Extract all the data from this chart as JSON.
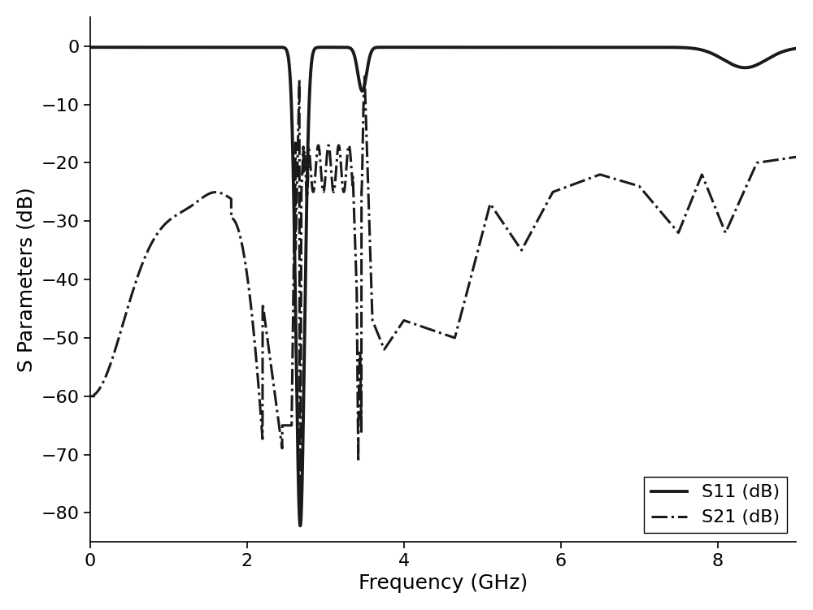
{
  "title": "",
  "xlabel": "Frequency (GHz)",
  "ylabel": "S Parameters (dB)",
  "xlim": [
    0,
    9
  ],
  "ylim": [
    -85,
    5
  ],
  "yticks": [
    0,
    -10,
    -20,
    -30,
    -40,
    -50,
    -60,
    -70,
    -80
  ],
  "xticks": [
    0,
    2,
    4,
    6,
    8
  ],
  "legend_labels": [
    "S11 (dB)",
    "S21 (dB)"
  ],
  "background_color": "#ffffff",
  "line_color": "#1a1a1a",
  "xlabel_fontsize": 18,
  "ylabel_fontsize": 18,
  "tick_fontsize": 16,
  "legend_fontsize": 16,
  "linewidth_s11": 2.8,
  "linewidth_s21": 2.2
}
